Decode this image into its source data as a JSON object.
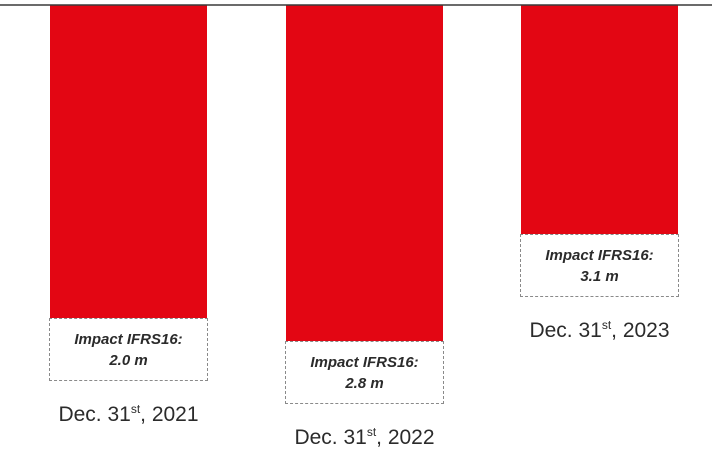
{
  "chart_data": {
    "type": "bar",
    "orientation": "downward",
    "categories": [
      {
        "pre": "Dec. 31",
        "sup": "st",
        "post": ", 2021"
      },
      {
        "pre": "Dec. 31",
        "sup": "st",
        "post": ", 2022"
      },
      {
        "pre": "Dec. 31",
        "sup": "st",
        "post": ", 2023"
      }
    ],
    "values": [
      313,
      336,
      229
    ],
    "bar_color": "#e30613",
    "annotations": [
      {
        "line1": "Impact IFRS16:",
        "line2": "2.0 m"
      },
      {
        "line1": "Impact IFRS16:",
        "line2": "2.8 m"
      },
      {
        "line1": "Impact IFRS16:",
        "line2": "3.1 m"
      }
    ]
  }
}
